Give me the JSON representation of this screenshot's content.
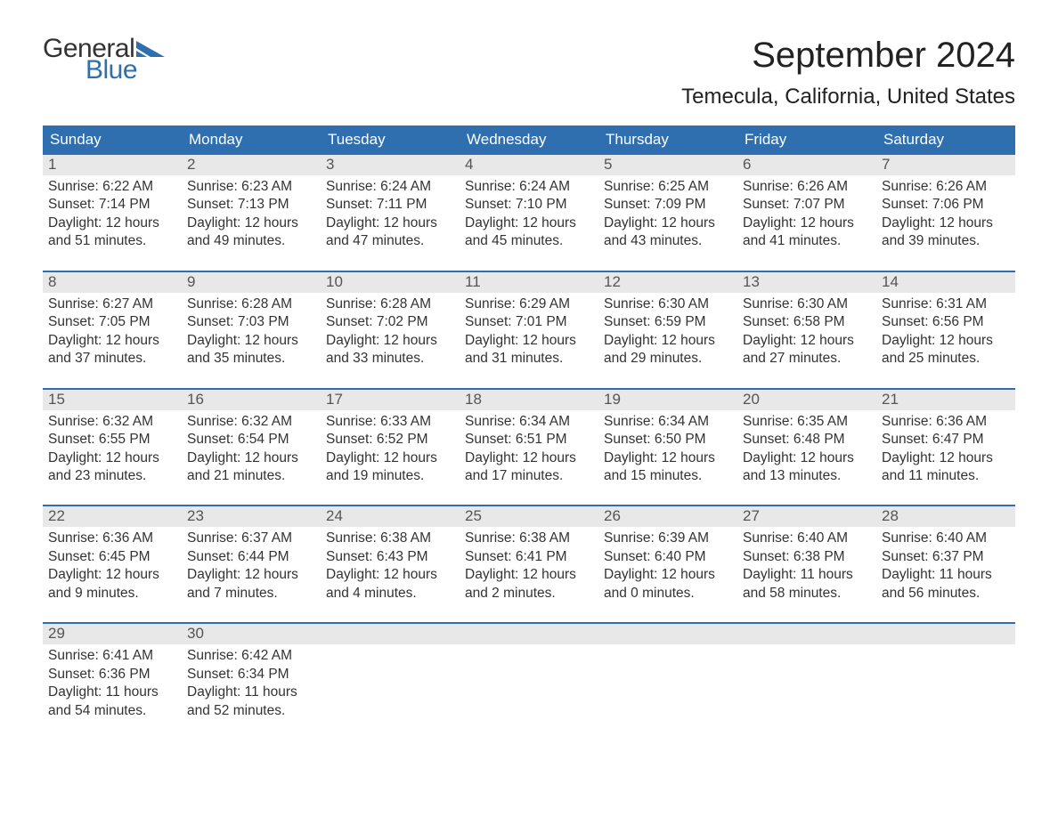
{
  "logo": {
    "text_general": "General",
    "text_blue": "Blue",
    "color_general": "#333333",
    "color_blue": "#2f6fb0"
  },
  "title": "September 2024",
  "location": "Temecula, California, United States",
  "colors": {
    "header_bg": "#2f6fb0",
    "header_text": "#ffffff",
    "daynum_bg": "#e8e8e8",
    "week_divider": "#2f6fb0",
    "body_text": "#333333",
    "page_bg": "#ffffff"
  },
  "fonts": {
    "title_size_pt": 30,
    "location_size_pt": 18,
    "dayheader_size_pt": 13,
    "cell_size_pt": 12
  },
  "day_headers": [
    "Sunday",
    "Monday",
    "Tuesday",
    "Wednesday",
    "Thursday",
    "Friday",
    "Saturday"
  ],
  "weeks": [
    [
      {
        "n": "1",
        "sunrise": "Sunrise: 6:22 AM",
        "sunset": "Sunset: 7:14 PM",
        "d1": "Daylight: 12 hours",
        "d2": "and 51 minutes."
      },
      {
        "n": "2",
        "sunrise": "Sunrise: 6:23 AM",
        "sunset": "Sunset: 7:13 PM",
        "d1": "Daylight: 12 hours",
        "d2": "and 49 minutes."
      },
      {
        "n": "3",
        "sunrise": "Sunrise: 6:24 AM",
        "sunset": "Sunset: 7:11 PM",
        "d1": "Daylight: 12 hours",
        "d2": "and 47 minutes."
      },
      {
        "n": "4",
        "sunrise": "Sunrise: 6:24 AM",
        "sunset": "Sunset: 7:10 PM",
        "d1": "Daylight: 12 hours",
        "d2": "and 45 minutes."
      },
      {
        "n": "5",
        "sunrise": "Sunrise: 6:25 AM",
        "sunset": "Sunset: 7:09 PM",
        "d1": "Daylight: 12 hours",
        "d2": "and 43 minutes."
      },
      {
        "n": "6",
        "sunrise": "Sunrise: 6:26 AM",
        "sunset": "Sunset: 7:07 PM",
        "d1": "Daylight: 12 hours",
        "d2": "and 41 minutes."
      },
      {
        "n": "7",
        "sunrise": "Sunrise: 6:26 AM",
        "sunset": "Sunset: 7:06 PM",
        "d1": "Daylight: 12 hours",
        "d2": "and 39 minutes."
      }
    ],
    [
      {
        "n": "8",
        "sunrise": "Sunrise: 6:27 AM",
        "sunset": "Sunset: 7:05 PM",
        "d1": "Daylight: 12 hours",
        "d2": "and 37 minutes."
      },
      {
        "n": "9",
        "sunrise": "Sunrise: 6:28 AM",
        "sunset": "Sunset: 7:03 PM",
        "d1": "Daylight: 12 hours",
        "d2": "and 35 minutes."
      },
      {
        "n": "10",
        "sunrise": "Sunrise: 6:28 AM",
        "sunset": "Sunset: 7:02 PM",
        "d1": "Daylight: 12 hours",
        "d2": "and 33 minutes."
      },
      {
        "n": "11",
        "sunrise": "Sunrise: 6:29 AM",
        "sunset": "Sunset: 7:01 PM",
        "d1": "Daylight: 12 hours",
        "d2": "and 31 minutes."
      },
      {
        "n": "12",
        "sunrise": "Sunrise: 6:30 AM",
        "sunset": "Sunset: 6:59 PM",
        "d1": "Daylight: 12 hours",
        "d2": "and 29 minutes."
      },
      {
        "n": "13",
        "sunrise": "Sunrise: 6:30 AM",
        "sunset": "Sunset: 6:58 PM",
        "d1": "Daylight: 12 hours",
        "d2": "and 27 minutes."
      },
      {
        "n": "14",
        "sunrise": "Sunrise: 6:31 AM",
        "sunset": "Sunset: 6:56 PM",
        "d1": "Daylight: 12 hours",
        "d2": "and 25 minutes."
      }
    ],
    [
      {
        "n": "15",
        "sunrise": "Sunrise: 6:32 AM",
        "sunset": "Sunset: 6:55 PM",
        "d1": "Daylight: 12 hours",
        "d2": "and 23 minutes."
      },
      {
        "n": "16",
        "sunrise": "Sunrise: 6:32 AM",
        "sunset": "Sunset: 6:54 PM",
        "d1": "Daylight: 12 hours",
        "d2": "and 21 minutes."
      },
      {
        "n": "17",
        "sunrise": "Sunrise: 6:33 AM",
        "sunset": "Sunset: 6:52 PM",
        "d1": "Daylight: 12 hours",
        "d2": "and 19 minutes."
      },
      {
        "n": "18",
        "sunrise": "Sunrise: 6:34 AM",
        "sunset": "Sunset: 6:51 PM",
        "d1": "Daylight: 12 hours",
        "d2": "and 17 minutes."
      },
      {
        "n": "19",
        "sunrise": "Sunrise: 6:34 AM",
        "sunset": "Sunset: 6:50 PM",
        "d1": "Daylight: 12 hours",
        "d2": "and 15 minutes."
      },
      {
        "n": "20",
        "sunrise": "Sunrise: 6:35 AM",
        "sunset": "Sunset: 6:48 PM",
        "d1": "Daylight: 12 hours",
        "d2": "and 13 minutes."
      },
      {
        "n": "21",
        "sunrise": "Sunrise: 6:36 AM",
        "sunset": "Sunset: 6:47 PM",
        "d1": "Daylight: 12 hours",
        "d2": "and 11 minutes."
      }
    ],
    [
      {
        "n": "22",
        "sunrise": "Sunrise: 6:36 AM",
        "sunset": "Sunset: 6:45 PM",
        "d1": "Daylight: 12 hours",
        "d2": "and 9 minutes."
      },
      {
        "n": "23",
        "sunrise": "Sunrise: 6:37 AM",
        "sunset": "Sunset: 6:44 PM",
        "d1": "Daylight: 12 hours",
        "d2": "and 7 minutes."
      },
      {
        "n": "24",
        "sunrise": "Sunrise: 6:38 AM",
        "sunset": "Sunset: 6:43 PM",
        "d1": "Daylight: 12 hours",
        "d2": "and 4 minutes."
      },
      {
        "n": "25",
        "sunrise": "Sunrise: 6:38 AM",
        "sunset": "Sunset: 6:41 PM",
        "d1": "Daylight: 12 hours",
        "d2": "and 2 minutes."
      },
      {
        "n": "26",
        "sunrise": "Sunrise: 6:39 AM",
        "sunset": "Sunset: 6:40 PM",
        "d1": "Daylight: 12 hours",
        "d2": "and 0 minutes."
      },
      {
        "n": "27",
        "sunrise": "Sunrise: 6:40 AM",
        "sunset": "Sunset: 6:38 PM",
        "d1": "Daylight: 11 hours",
        "d2": "and 58 minutes."
      },
      {
        "n": "28",
        "sunrise": "Sunrise: 6:40 AM",
        "sunset": "Sunset: 6:37 PM",
        "d1": "Daylight: 11 hours",
        "d2": "and 56 minutes."
      }
    ],
    [
      {
        "n": "29",
        "sunrise": "Sunrise: 6:41 AM",
        "sunset": "Sunset: 6:36 PM",
        "d1": "Daylight: 11 hours",
        "d2": "and 54 minutes."
      },
      {
        "n": "30",
        "sunrise": "Sunrise: 6:42 AM",
        "sunset": "Sunset: 6:34 PM",
        "d1": "Daylight: 11 hours",
        "d2": "and 52 minutes."
      },
      null,
      null,
      null,
      null,
      null
    ]
  ]
}
